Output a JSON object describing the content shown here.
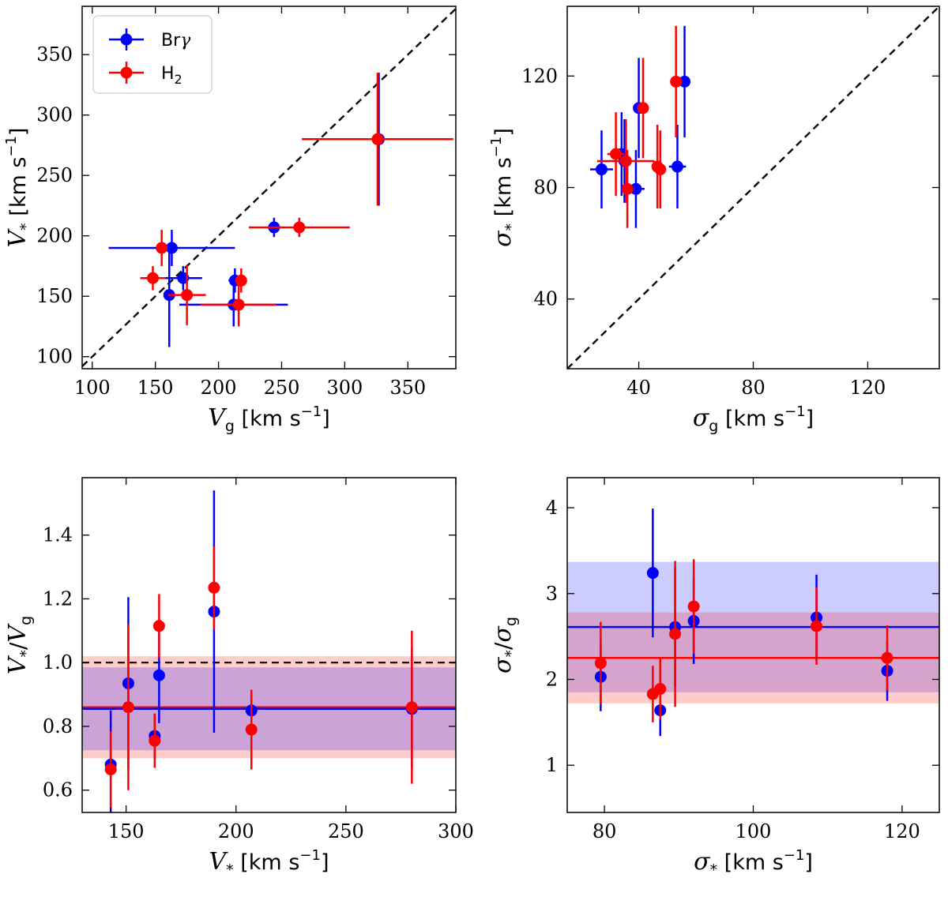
{
  "chart_data": [
    {
      "id": "top-left",
      "type": "scatter",
      "xlabel": {
        "sym": "V",
        "sub": "g",
        "unit": "[km s",
        "exp": "−1",
        "close": "]"
      },
      "ylabel": {
        "sym": "V",
        "sub": "*",
        "unit": "[km s",
        "exp": "−1",
        "close": "]"
      },
      "xlim": [
        92,
        388
      ],
      "ylim": [
        90,
        390
      ],
      "xticks": [
        100,
        150,
        200,
        250,
        300,
        350
      ],
      "yticks": [
        100,
        150,
        200,
        250,
        300,
        350
      ],
      "identity_line": true,
      "legend": {
        "loc": "upper-left",
        "entries": [
          {
            "label": "Brγ",
            "base": "Br",
            "sub": "",
            "tail": "γ",
            "color": "#0000ff"
          },
          {
            "label": "H2",
            "base": "H",
            "sub": "2",
            "tail": "",
            "color": "#ff0000"
          }
        ]
      },
      "series": [
        {
          "name": "Brγ",
          "color": "#0000ff",
          "points": [
            {
              "x": 327,
              "y": 280,
              "xerr": 2,
              "yerr": 55
            },
            {
              "x": 244,
              "y": 207,
              "xerr": 2,
              "yerr": 8
            },
            {
              "x": 163,
              "y": 190,
              "xerr": 50,
              "yerr": 15
            },
            {
              "x": 172,
              "y": 165,
              "xerr": 15,
              "yerr": 10
            },
            {
              "x": 161,
              "y": 151,
              "xerr": 2,
              "yerr": 43
            },
            {
              "x": 213,
              "y": 163,
              "xerr": 5,
              "yerr": 10
            },
            {
              "x": 212,
              "y": 143,
              "xerr": 43,
              "yerr": 18
            }
          ]
        },
        {
          "name": "H2",
          "color": "#ff0000",
          "points": [
            {
              "x": 326,
              "y": 280,
              "xerr": 60,
              "yerr": 55
            },
            {
              "x": 264,
              "y": 207,
              "xerr": 40,
              "yerr": 8
            },
            {
              "x": 155,
              "y": 190,
              "xerr": 3,
              "yerr": 15
            },
            {
              "x": 148,
              "y": 165,
              "xerr": 10,
              "yerr": 10
            },
            {
              "x": 175,
              "y": 151,
              "xerr": 15,
              "yerr": 25
            },
            {
              "x": 218,
              "y": 163,
              "xerr": 3,
              "yerr": 10
            },
            {
              "x": 216,
              "y": 143,
              "xerr": 30,
              "yerr": 18
            }
          ]
        }
      ]
    },
    {
      "id": "top-right",
      "type": "scatter",
      "xlabel": {
        "sym": "σ",
        "sub": "g",
        "unit": "[km s",
        "exp": "−1",
        "close": "]"
      },
      "ylabel": {
        "sym": "σ",
        "sub": "*",
        "unit": "[km s",
        "exp": "−1",
        "close": "]"
      },
      "xlim": [
        15,
        145
      ],
      "ylim": [
        15,
        145
      ],
      "xticks": [
        40,
        80,
        120
      ],
      "yticks": [
        40,
        80,
        120
      ],
      "identity_line": true,
      "series": [
        {
          "name": "Brγ",
          "color": "#0000ff",
          "points": [
            {
              "x": 27,
              "y": 86.5,
              "xerr": 4,
              "yerr": 14
            },
            {
              "x": 34,
              "y": 92,
              "xerr": 2,
              "yerr": 15
            },
            {
              "x": 35,
              "y": 89.5,
              "xerr": 1,
              "yerr": 15
            },
            {
              "x": 39,
              "y": 79.5,
              "xerr": 3,
              "yerr": 14
            },
            {
              "x": 40,
              "y": 108.5,
              "xerr": 1,
              "yerr": 18
            },
            {
              "x": 53.5,
              "y": 87.5,
              "xerr": 3,
              "yerr": 15
            },
            {
              "x": 56,
              "y": 118,
              "xerr": 1,
              "yerr": 20
            }
          ]
        },
        {
          "name": "H2",
          "color": "#ff0000",
          "points": [
            {
              "x": 32,
              "y": 92,
              "xerr": 3,
              "yerr": 15
            },
            {
              "x": 35.5,
              "y": 89.5,
              "xerr": 10,
              "yerr": 15
            },
            {
              "x": 36,
              "y": 79.5,
              "xerr": 1,
              "yerr": 14
            },
            {
              "x": 41.5,
              "y": 108.5,
              "xerr": 1,
              "yerr": 18
            },
            {
              "x": 46.5,
              "y": 87.5,
              "xerr": 1,
              "yerr": 15
            },
            {
              "x": 47.5,
              "y": 86.5,
              "xerr": 1,
              "yerr": 14
            },
            {
              "x": 53,
              "y": 118,
              "xerr": 1,
              "yerr": 20
            }
          ]
        }
      ]
    },
    {
      "id": "bottom-left",
      "type": "scatter",
      "xlabel": {
        "sym": "V",
        "sub": "*",
        "unit": "[km s",
        "exp": "−1",
        "close": "]"
      },
      "ylabel": {
        "sym": "V",
        "sub": "*",
        "mid": "/",
        "sym2": "V",
        "sub2": "g"
      },
      "xlim": [
        130,
        300
      ],
      "ylim": [
        0.53,
        1.58
      ],
      "xticks": [
        150,
        200,
        250,
        300
      ],
      "yticks": [
        0.6,
        0.8,
        1.0,
        1.2,
        1.4
      ],
      "ytick_labels": [
        "0.6",
        "0.8",
        "1.0",
        "1.2",
        "1.4"
      ],
      "hline_dashed": 1.0,
      "bands": [
        {
          "name": "H2",
          "color": "#ff0000",
          "mean": 0.86,
          "lo": 0.7,
          "hi": 1.02
        },
        {
          "name": "Brγ",
          "color": "#0000ff",
          "mean": 0.855,
          "lo": 0.725,
          "hi": 0.985
        }
      ],
      "series": [
        {
          "name": "Brγ",
          "color": "#0000ff",
          "points": [
            {
              "x": 143,
              "y": 0.68,
              "yerr": 0.17
            },
            {
              "x": 151,
              "y": 0.935,
              "yerr": 0.27
            },
            {
              "x": 163,
              "y": 0.77,
              "yerr": 0.07
            },
            {
              "x": 165,
              "y": 0.96,
              "yerr": 0.15
            },
            {
              "x": 190,
              "y": 1.16,
              "yerr": 0.38
            },
            {
              "x": 207,
              "y": 0.85,
              "yerr": 0.06
            },
            {
              "x": 280,
              "y": 0.855,
              "yerr": 0.19
            }
          ]
        },
        {
          "name": "H2",
          "color": "#ff0000",
          "points": [
            {
              "x": 143,
              "y": 0.665,
              "yerr": 0.12
            },
            {
              "x": 151,
              "y": 0.86,
              "yerr": 0.26
            },
            {
              "x": 163,
              "y": 0.755,
              "yerr": 0.085
            },
            {
              "x": 165,
              "y": 1.115,
              "yerr": 0.1
            },
            {
              "x": 190,
              "y": 1.235,
              "yerr": 0.13
            },
            {
              "x": 207,
              "y": 0.79,
              "yerr": 0.125
            },
            {
              "x": 280,
              "y": 0.86,
              "yerr": 0.24
            }
          ]
        }
      ]
    },
    {
      "id": "bottom-right",
      "type": "scatter",
      "xlabel": {
        "sym": "σ",
        "sub": "*",
        "unit": "[km s",
        "exp": "−1",
        "close": "]"
      },
      "ylabel": {
        "sym": "σ",
        "sub": "*",
        "mid": "/",
        "sym2": "σ",
        "sub2": "g"
      },
      "xlim": [
        75,
        125
      ],
      "ylim": [
        0.45,
        4.35
      ],
      "xticks": [
        80,
        100,
        120
      ],
      "yticks": [
        1,
        2,
        3,
        4
      ],
      "bands": [
        {
          "name": "Brγ",
          "color": "#0000ff",
          "mean": 2.61,
          "lo": 1.85,
          "hi": 3.37
        },
        {
          "name": "H2",
          "color": "#ff0000",
          "mean": 2.25,
          "lo": 1.72,
          "hi": 2.78
        }
      ],
      "series": [
        {
          "name": "Brγ",
          "color": "#0000ff",
          "points": [
            {
              "x": 79.5,
              "y": 2.03,
              "yerr": 0.4
            },
            {
              "x": 86.5,
              "y": 3.24,
              "yerr": 0.75
            },
            {
              "x": 87.5,
              "y": 1.64,
              "yerr": 0.3
            },
            {
              "x": 89.5,
              "y": 2.61,
              "yerr": 0.7
            },
            {
              "x": 92,
              "y": 2.68,
              "yerr": 0.5
            },
            {
              "x": 108.5,
              "y": 2.72,
              "yerr": 0.5
            },
            {
              "x": 118,
              "y": 2.1,
              "yerr": 0.35
            }
          ]
        },
        {
          "name": "H2",
          "color": "#ff0000",
          "points": [
            {
              "x": 79.5,
              "y": 2.19,
              "yerr": 0.48
            },
            {
              "x": 86.5,
              "y": 1.83,
              "yerr": 0.33
            },
            {
              "x": 87.5,
              "y": 1.89,
              "yerr": 0.35
            },
            {
              "x": 89.5,
              "y": 2.53,
              "yerr": 0.85
            },
            {
              "x": 92,
              "y": 2.85,
              "yerr": 0.55
            },
            {
              "x": 108.5,
              "y": 2.62,
              "yerr": 0.45
            },
            {
              "x": 118,
              "y": 2.25,
              "yerr": 0.38
            }
          ]
        }
      ]
    }
  ]
}
